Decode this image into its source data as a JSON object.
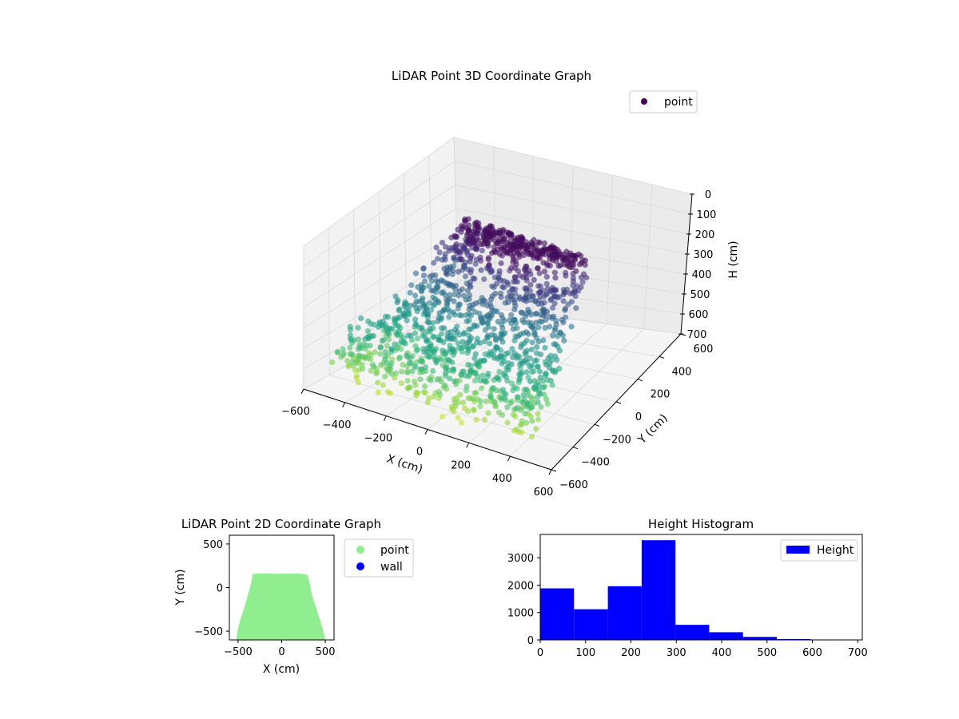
{
  "chart_data": [
    {
      "type": "scatter",
      "projection": "3d",
      "title": "LiDAR Point 3D Coordinate Graph",
      "xlabel": "X (cm)",
      "ylabel": "Y (cm)",
      "zlabel": "H (cm)",
      "xlim": [
        -600,
        600
      ],
      "ylim": [
        -600,
        600
      ],
      "zlim": [
        700,
        0
      ],
      "z_inverted": true,
      "xticks": [
        -600,
        -400,
        -200,
        0,
        200,
        400,
        600
      ],
      "yticks": [
        -600,
        -400,
        -200,
        0,
        200,
        400,
        600
      ],
      "zticks": [
        0,
        100,
        200,
        300,
        400,
        500,
        600,
        700
      ],
      "colormap": "viridis",
      "grid": true,
      "legend": {
        "placement": "upper-right",
        "entries": [
          "point"
        ]
      },
      "series": [
        {
          "name": "point",
          "color": "#440154",
          "description_shape": "bowl-shaped cloud of points: high points near far corner, low points near front",
          "points_sample": [
            {
              "x": -450,
              "y": -500,
              "h": 650
            },
            {
              "x": -400,
              "y": -300,
              "h": 500
            },
            {
              "x": -300,
              "y": -100,
              "h": 400
            },
            {
              "x": -200,
              "y": 100,
              "h": 300
            },
            {
              "x": 0,
              "y": 150,
              "h": 100
            },
            {
              "x": 200,
              "y": 150,
              "h": 50
            },
            {
              "x": 350,
              "y": 100,
              "h": 150
            },
            {
              "x": 400,
              "y": -200,
              "h": 350
            },
            {
              "x": 300,
              "y": -450,
              "h": 500
            },
            {
              "x": 0,
              "y": -500,
              "h": 600
            },
            {
              "x": -200,
              "y": -500,
              "h": 640
            },
            {
              "x": 100,
              "y": -200,
              "h": 300
            }
          ]
        }
      ]
    },
    {
      "type": "scatter",
      "title": "LiDAR Point 2D Coordinate Graph",
      "xlabel": "X (cm)",
      "ylabel": "Y (cm)",
      "xlim": [
        -600,
        600
      ],
      "ylim": [
        -600,
        600
      ],
      "xticks": [
        -500,
        0,
        500
      ],
      "yticks": [
        -500,
        0,
        500
      ],
      "legend": {
        "placement": "outside-right",
        "entries": [
          "point",
          "wall"
        ]
      },
      "series": [
        {
          "name": "point",
          "color": "#90ee90",
          "outline": [
            [
              -320,
              140
            ],
            [
              -200,
              145
            ],
            [
              -50,
              140
            ],
            [
              100,
              145
            ],
            [
              230,
              140
            ],
            [
              280,
              130
            ],
            [
              300,
              60
            ],
            [
              330,
              -100
            ],
            [
              380,
              -250
            ],
            [
              430,
              -400
            ],
            [
              470,
              -550
            ],
            [
              480,
              -580
            ],
            [
              -500,
              -580
            ],
            [
              -490,
              -500
            ],
            [
              -450,
              -350
            ],
            [
              -400,
              -200
            ],
            [
              -360,
              -50
            ],
            [
              -330,
              60
            ]
          ]
        },
        {
          "name": "wall",
          "color": "#0000ff",
          "points": []
        }
      ]
    },
    {
      "type": "bar",
      "subtype": "histogram",
      "title": "Height Histogram",
      "xlim": [
        0,
        710
      ],
      "ylim": [
        0,
        3850
      ],
      "xticks": [
        0,
        100,
        200,
        300,
        400,
        500,
        600,
        700
      ],
      "yticks": [
        0,
        1000,
        2000,
        3000
      ],
      "legend": {
        "placement": "upper-right",
        "entries": [
          "Height"
        ]
      },
      "series": [
        {
          "name": "Height",
          "color": "#0000ff",
          "bin_edges": [
            0,
            74.5,
            149,
            223.5,
            298,
            372.5,
            447,
            521.5,
            596,
            670.5
          ],
          "values": [
            1880,
            1120,
            1960,
            3640,
            550,
            280,
            110,
            30,
            10
          ]
        }
      ]
    }
  ]
}
